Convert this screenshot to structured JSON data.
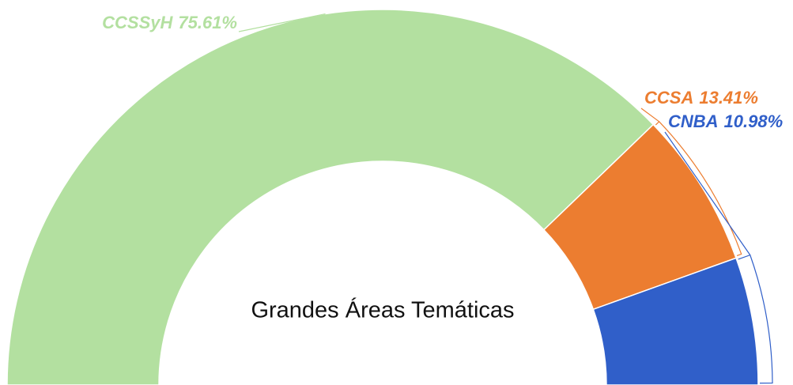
{
  "chart_data": {
    "type": "half-donut",
    "title": "Grandes Áreas Temáticas",
    "categories": [
      "CCSSyH",
      "CCSA",
      "CNBA"
    ],
    "values": [
      75.61,
      13.41,
      10.98
    ],
    "value_labels": [
      "75.61%",
      "13.41%",
      "10.98%"
    ],
    "colors": [
      "#b3e0a0",
      "#ec7d30",
      "#305fc9"
    ]
  }
}
